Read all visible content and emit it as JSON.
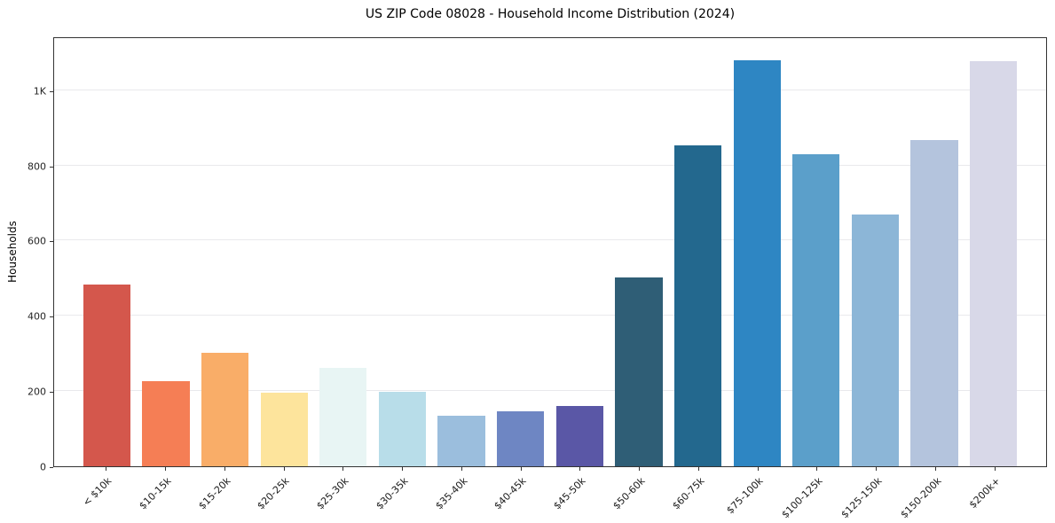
{
  "chart_data": {
    "type": "bar",
    "title": "US ZIP Code 08028 - Household Income Distribution (2024)",
    "xlabel": "",
    "ylabel": "Households",
    "categories": [
      "< $10k",
      "$10-15k",
      "$15-20k",
      "$20-25k",
      "$25-30k",
      "$30-35k",
      "$35-40k",
      "$40-45k",
      "$45-50k",
      "$50-60k",
      "$60-75k",
      "$75-100k",
      "$100-125k",
      "$125-150k",
      "$150-200k",
      "$200k+"
    ],
    "values": [
      486,
      228,
      303,
      196,
      262,
      199,
      135,
      147,
      161,
      503,
      856,
      1083,
      833,
      672,
      872,
      1082
    ],
    "bar_colors": [
      "#d4574c",
      "#f57e55",
      "#f9ad68",
      "#fde49c",
      "#e8f5f4",
      "#b8dde9",
      "#9bbedd",
      "#6e86c3",
      "#5a57a6",
      "#2f5e76",
      "#23688e",
      "#2e86c3",
      "#5b9fca",
      "#8cb6d7",
      "#b4c4dd",
      "#d8d8e8"
    ],
    "ylim": [
      0,
      1143
    ],
    "yticks": [
      {
        "value": 0,
        "label": "0"
      },
      {
        "value": 200,
        "label": "200"
      },
      {
        "value": 400,
        "label": "400"
      },
      {
        "value": 600,
        "label": "600"
      },
      {
        "value": 800,
        "label": "800"
      },
      {
        "value": 1000,
        "label": "1K"
      }
    ],
    "grid": "horizontal",
    "legend": "none"
  },
  "colors": {
    "background": "#ffffff",
    "grid": "#e9e9ec",
    "axis": "#333333",
    "text": "#1a1a1a"
  }
}
